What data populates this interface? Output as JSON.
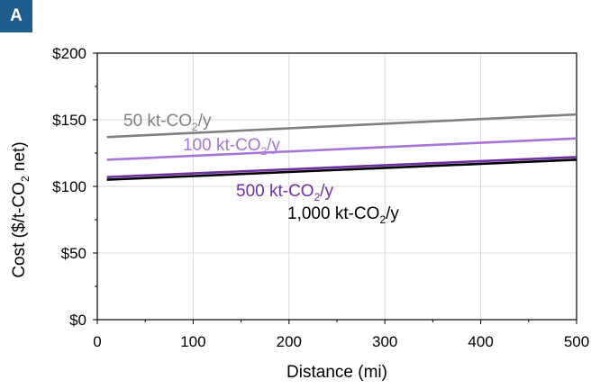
{
  "panel_label": "A",
  "chart_data": {
    "type": "line",
    "xlabel": "Distance (mi)",
    "ylabel": {
      "main": "Cost ($/t-CO",
      "sub": "2",
      "tail": " net)"
    },
    "xlim": [
      0,
      500
    ],
    "ylim": [
      0,
      200
    ],
    "x_ticks": [
      0,
      100,
      200,
      300,
      400,
      500
    ],
    "y_ticks": [
      0,
      50,
      100,
      150,
      200
    ],
    "x_tick_labels": [
      "0",
      "100",
      "200",
      "300",
      "400",
      "500"
    ],
    "y_tick_labels": [
      "$0",
      "$50",
      "$100",
      "$150",
      "$200"
    ],
    "grid": true,
    "series": [
      {
        "name": "50 kt-CO2/y",
        "label_main": "50 kt-CO",
        "label_sub": "2",
        "label_tail": "/y",
        "color": "#808080",
        "x": [
          10,
          500
        ],
        "y": [
          137,
          154
        ]
      },
      {
        "name": "100 kt-CO2/y",
        "label_main": "100 kt-CO",
        "label_sub": "2",
        "label_tail": "/y",
        "color": "#a774d8",
        "x": [
          10,
          500
        ],
        "y": [
          120,
          136
        ]
      },
      {
        "name": "500 kt-CO2/y",
        "label_main": "500 kt-CO",
        "label_sub": "2",
        "label_tail": "/y",
        "color": "#7030a0",
        "x": [
          10,
          500
        ],
        "y": [
          107,
          122
        ]
      },
      {
        "name": "1,000 kt-CO2/y",
        "label_main": "1,000 kt-CO",
        "label_sub": "2",
        "label_tail": "/y",
        "color": "#000000",
        "x": [
          10,
          500
        ],
        "y": [
          105,
          120
        ]
      }
    ]
  }
}
